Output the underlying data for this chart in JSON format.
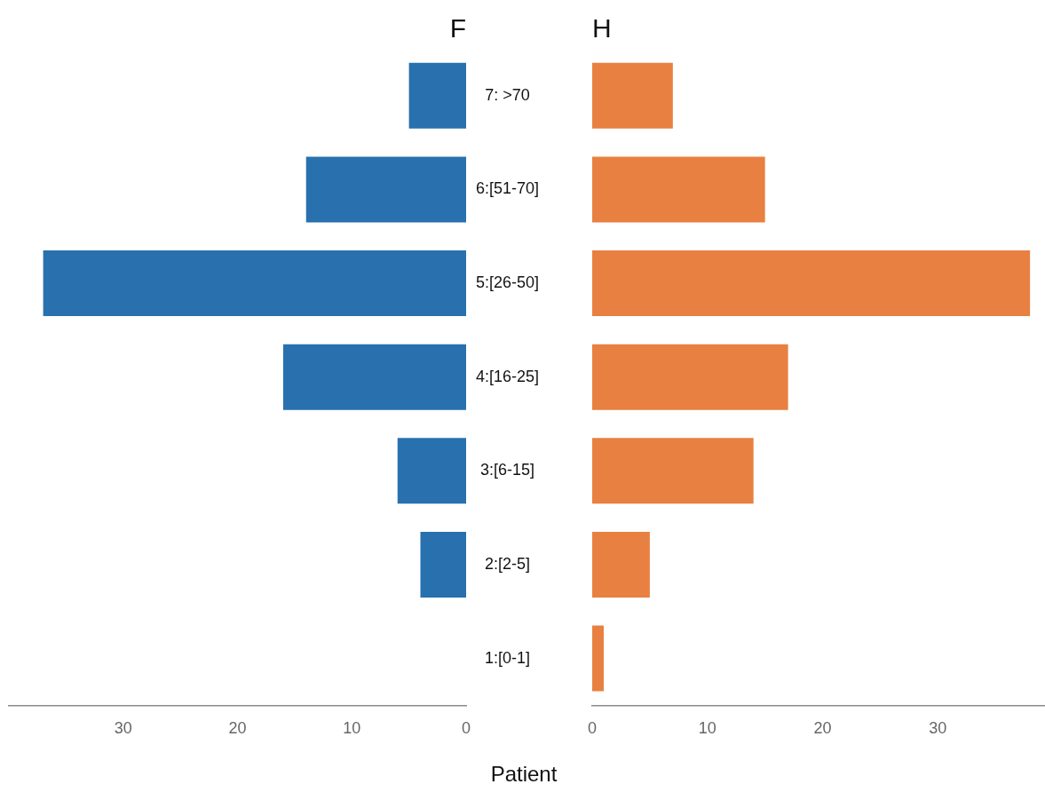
{
  "chart_data": [
    {
      "type": "bar",
      "orientation": "horizontal",
      "title": "F",
      "xlabel": "Patient",
      "categories": [
        "7: >70",
        "6:[51-70]",
        "5:[26-50]",
        "4:[16-25]",
        "3:[6-15]",
        "2:[2-5]",
        "1:[0-1]"
      ],
      "values": [
        5,
        14,
        37,
        16,
        6,
        4,
        0
      ],
      "color": "#2871ae",
      "xlim": [
        40,
        0
      ],
      "xticks": [
        30,
        20,
        10,
        0
      ],
      "grid": false,
      "legend": false
    },
    {
      "type": "bar",
      "orientation": "horizontal",
      "title": "H",
      "values": [
        7,
        15,
        38,
        17,
        14,
        5,
        1
      ],
      "color": "#e88041",
      "xlim": [
        0,
        39.3
      ],
      "xticks": [
        0,
        10,
        20,
        30
      ],
      "grid": false,
      "legend": false,
      "tick_labels": "x"
    }
  ]
}
